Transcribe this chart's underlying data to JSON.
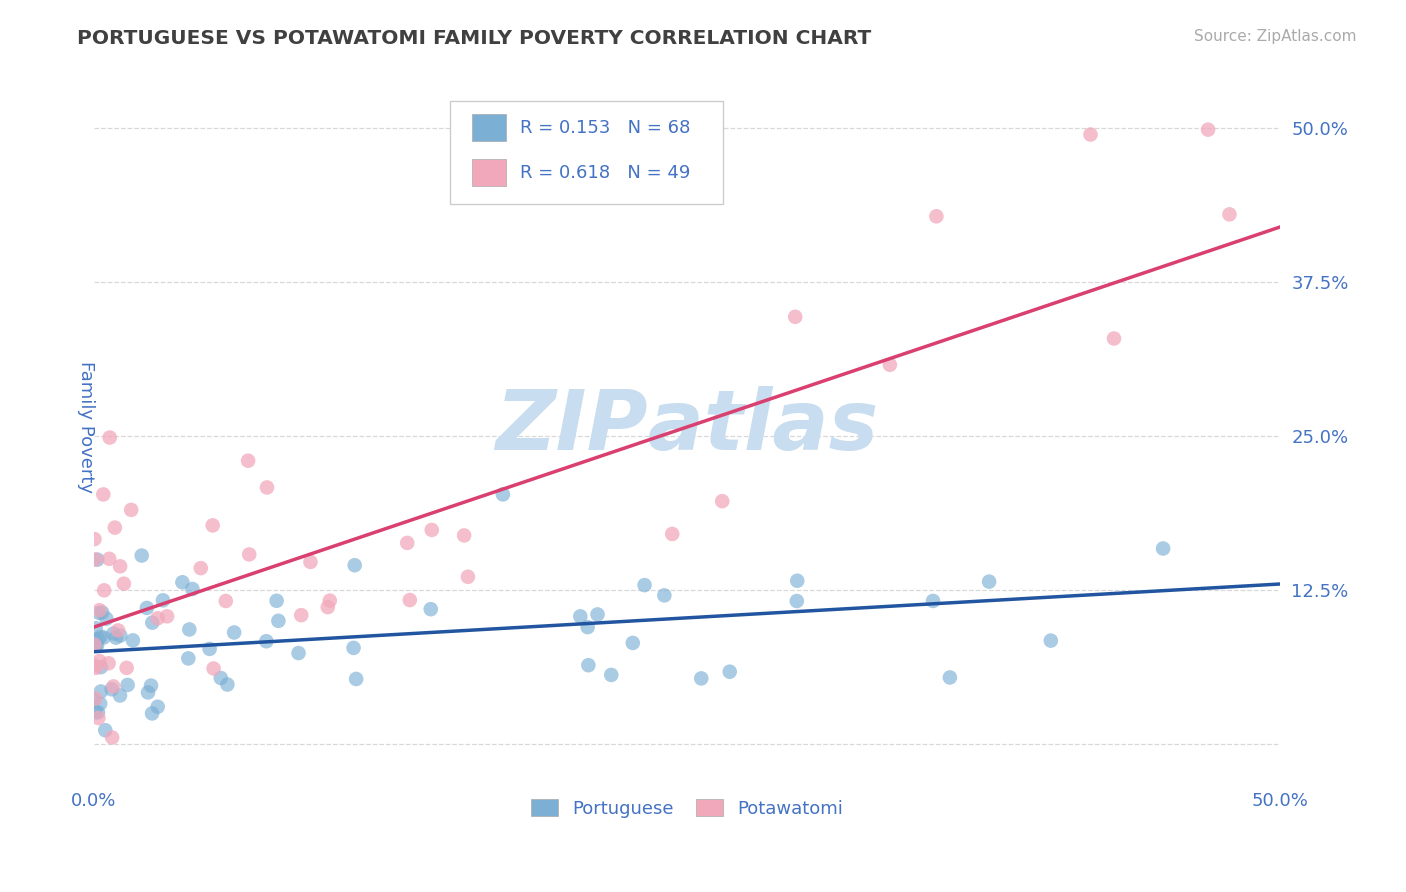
{
  "title": "PORTUGUESE VS POTAWATOMI FAMILY POVERTY CORRELATION CHART",
  "source": "Source: ZipAtlas.com",
  "ylabel": "Family Poverty",
  "xlim": [
    0.0,
    0.5
  ],
  "ylim": [
    -0.03,
    0.545
  ],
  "xticks": [
    0.0,
    0.125,
    0.25,
    0.375,
    0.5
  ],
  "yticks": [
    0.0,
    0.125,
    0.25,
    0.375,
    0.5
  ],
  "xticklabels": [
    "0.0%",
    "",
    "",
    "",
    "50.0%"
  ],
  "yticklabels_right": [
    "",
    "12.5%",
    "25.0%",
    "37.5%",
    "50.0%"
  ],
  "bottom_xticklabels": [
    "0.0%",
    "50.0%"
  ],
  "legend_labels": [
    "Portuguese",
    "Potawatomi"
  ],
  "R_portuguese": 0.153,
  "N_portuguese": 68,
  "R_potawatomi": 0.618,
  "N_potawatomi": 49,
  "blue_scatter_color": "#7BAFD4",
  "pink_scatter_color": "#F2A8BB",
  "blue_line_color": "#2255A0",
  "pink_line_color": "#D94070",
  "tick_color": "#4472C4",
  "title_color": "#404040",
  "source_color": "#AAAAAA",
  "grid_color": "#D8D8D8",
  "blue_line_y0": 0.075,
  "blue_line_y1": 0.13,
  "pink_line_y0": 0.095,
  "pink_line_y1": 0.42
}
